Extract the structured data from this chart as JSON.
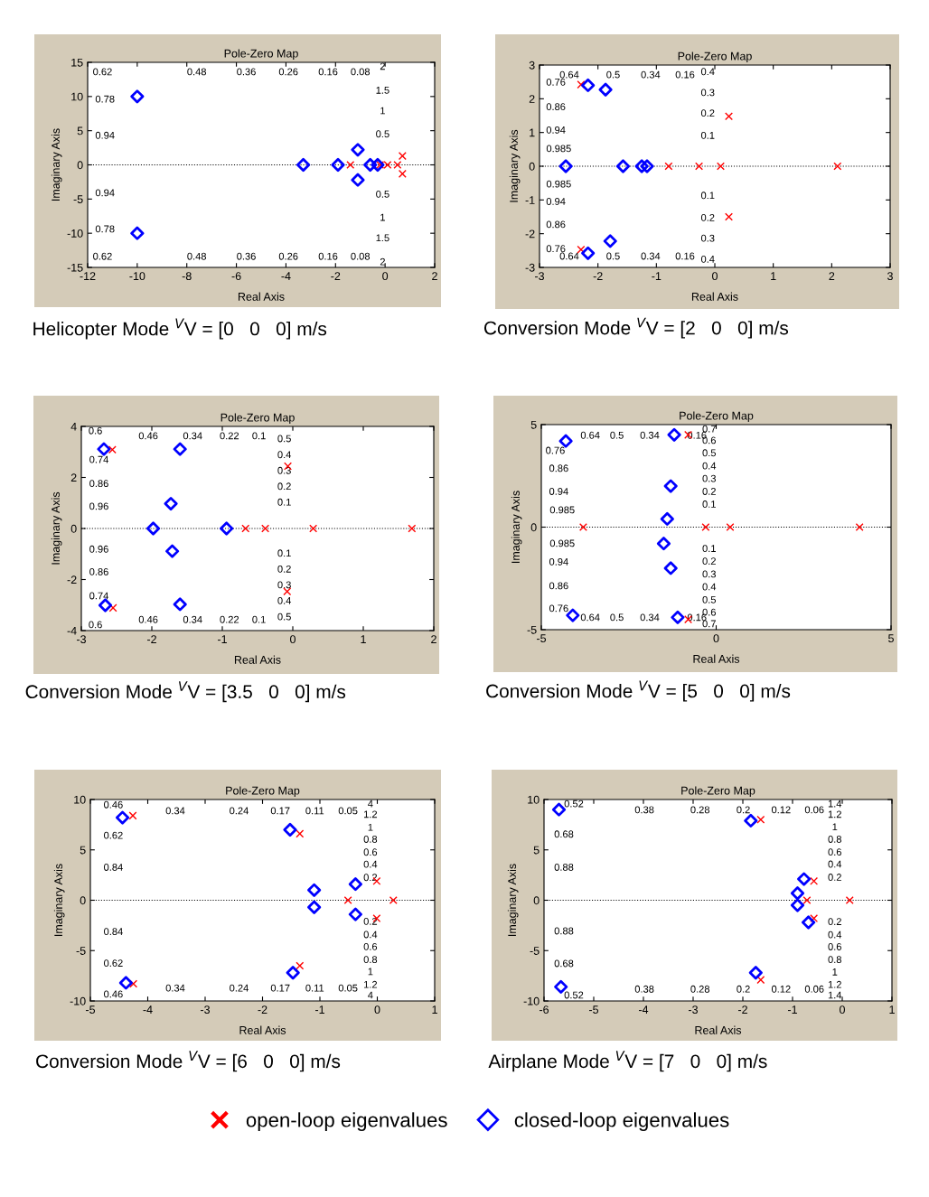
{
  "chart_data": [
    {
      "type": "scatter",
      "title": "Pole-Zero Map",
      "xlabel": "Real Axis",
      "ylabel": "Imaginary Axis",
      "xlim": [
        -12,
        2
      ],
      "ylim": [
        -15,
        15
      ],
      "xticks": [
        -12,
        -10,
        -8,
        -6,
        -4,
        -2,
        0,
        2
      ],
      "yticks": [
        -15,
        -10,
        -5,
        0,
        5,
        10,
        15
      ],
      "ref_lines": [
        {
          "axis": "y",
          "value": 0,
          "line_style": "dotted",
          "color": "#000000"
        }
      ],
      "series": [
        {
          "color": "#ff0000",
          "marker": "cross",
          "x": [
            -1.4,
            -0.2,
            0.1,
            0.5,
            0.7,
            0.7
          ],
          "values": [
            0,
            0,
            0,
            0,
            1.3,
            -1.3
          ]
        },
        {
          "color": "#0000ff",
          "marker": "diamond",
          "x": [
            -10,
            -10,
            -3.3,
            -1.9,
            -1.1,
            -1.1,
            -0.6,
            -0.3
          ],
          "values": [
            10,
            -10,
            0,
            0,
            2.2,
            -2.2,
            0,
            0
          ]
        }
      ],
      "annotations": [
        "0.62",
        "0.78",
        "0.94",
        "0.94",
        "0.78",
        "0.62",
        "0.48",
        "0.36",
        "0.26",
        "0.16",
        "0.08",
        "0.48",
        "0.36",
        "0.26",
        "0.16",
        "0.08",
        "2",
        "1.5",
        "1",
        "0.5",
        "0.5",
        "1",
        "1.5",
        "2",
        "Helicopter Mode $^{V}$V = [0   0   0] m/s"
      ]
    },
    {
      "type": "scatter",
      "title": "Pole-Zero Map",
      "xlabel": "Real Axis",
      "ylabel": "Imaginary Axis",
      "xlim": [
        -3,
        3
      ],
      "ylim": [
        -3,
        3
      ],
      "xticks": [
        -3,
        -2,
        -1,
        0,
        1,
        2,
        3
      ],
      "yticks": [
        -3,
        -2,
        -1,
        0,
        1,
        2,
        3
      ],
      "ref_lines": [
        {
          "axis": "y",
          "value": 0,
          "line_style": "dotted",
          "color": "#000000"
        }
      ],
      "series": [
        {
          "color": "#ff0000",
          "marker": "cross",
          "x": [
            -2.29,
            -2.29,
            -0.79,
            -0.27,
            0.1,
            0.24,
            0.24,
            2.1
          ],
          "values": [
            2.42,
            -2.47,
            0,
            0,
            0,
            1.48,
            -1.5,
            0
          ]
        },
        {
          "color": "#0000ff",
          "marker": "diamond",
          "x": [
            -2.17,
            -1.87,
            -2.55,
            -1.57,
            -1.25,
            -1.16,
            -1.79,
            -2.17
          ],
          "values": [
            2.4,
            2.27,
            0,
            0,
            0,
            0,
            -2.22,
            -2.58
          ]
        }
      ],
      "annotations": [
        "0.64",
        "0.76",
        "0.86",
        "0.94",
        "0.985",
        "0.985",
        "0.94",
        "0.86",
        "0.76",
        "0.64",
        "0.5",
        "0.34",
        "0.16",
        "0.5",
        "0.34",
        "0.16",
        "0.4",
        "0.3",
        "0.2",
        "0.1",
        "0.1",
        "0.2",
        "0.3",
        "0.4",
        "Conversion Mode $^{V}$V = [2   0   0] m/s"
      ]
    },
    {
      "type": "scatter",
      "title": "Pole-Zero Map",
      "xlabel": "Real Axis",
      "ylabel": "Imaginary Axis",
      "xlim": [
        -3,
        2
      ],
      "ylim": [
        -4,
        4
      ],
      "xticks": [
        -3,
        -2,
        -1,
        0,
        1,
        2
      ],
      "yticks": [
        -4,
        -2,
        0,
        2,
        4
      ],
      "ref_lines": [
        {
          "axis": "y",
          "value": 0,
          "line_style": "dotted",
          "color": "#000000"
        }
      ],
      "series": [
        {
          "color": "#ff0000",
          "marker": "cross",
          "x": [
            -2.56,
            -2.55,
            -0.67,
            -0.39,
            -0.07,
            -0.08,
            0.29,
            1.69
          ],
          "values": [
            3.09,
            -3.11,
            0,
            0,
            2.44,
            -2.47,
            0,
            0
          ]
        },
        {
          "color": "#0000ff",
          "marker": "diamond",
          "x": [
            -2.68,
            -1.6,
            -1.73,
            -1.98,
            -0.94,
            -1.71,
            -1.6,
            -2.66
          ],
          "values": [
            3.11,
            3.11,
            0.97,
            0,
            0,
            -0.89,
            -2.97,
            -3.01
          ]
        }
      ],
      "annotations": [
        "0.6",
        "0.74",
        "0.86",
        "0.96",
        "0.96",
        "0.86",
        "0.74",
        "0.6",
        "0.46",
        "0.34",
        "0.22",
        "0.1",
        "0.46",
        "0.34",
        "0.22",
        "0.1",
        "0.5",
        "0.4",
        "0.3",
        "0.2",
        "0.1",
        "0.1",
        "0.2",
        "0.3",
        "0.4",
        "0.5",
        "Conversion Mode $^{V}$V = [3.5   0   0] m/s"
      ]
    },
    {
      "type": "scatter",
      "title": "Pole-Zero Map",
      "xlabel": "Real Axis",
      "ylabel": "Imaginary Axis",
      "xlim": [
        -5,
        5
      ],
      "ylim": [
        -5,
        5
      ],
      "xticks": [
        -5,
        0,
        5
      ],
      "yticks": [
        -5,
        0,
        5
      ],
      "ref_lines": [
        {
          "axis": "y",
          "value": 0,
          "line_style": "dotted",
          "color": "#000000"
        }
      ],
      "series": [
        {
          "color": "#ff0000",
          "marker": "cross",
          "x": [
            -0.8,
            -0.8,
            -3.8,
            -0.3,
            0.4,
            4.1
          ],
          "values": [
            4.5,
            -4.5,
            0,
            0,
            0,
            0
          ]
        },
        {
          "color": "#0000ff",
          "marker": "diamond",
          "x": [
            -4.3,
            -1.2,
            -1.3,
            -1.4,
            -1.5,
            -1.3,
            -1.1,
            -4.1
          ],
          "values": [
            4.2,
            4.5,
            2.0,
            0.4,
            -0.8,
            -2.0,
            -4.4,
            -4.3
          ]
        }
      ],
      "annotations": [
        "0.76",
        "0.86",
        "0.94",
        "0.985",
        "0.985",
        "0.94",
        "0.86",
        "0.76",
        "0.64",
        "0.5",
        "0.34",
        "0.16",
        "0.64",
        "0.5",
        "0.34",
        "0.16",
        "0.7",
        "0.6",
        "0.5",
        "0.4",
        "0.3",
        "0.2",
        "0.1",
        "0.1",
        "0.2",
        "0.3",
        "0.4",
        "0.5",
        "0.6",
        "0.7",
        "Conversion Mode $^{V}$V = [5   0   0] m/s"
      ]
    },
    {
      "type": "scatter",
      "title": "Pole-Zero Map",
      "xlabel": "Real Axis",
      "ylabel": "Imaginary Axis",
      "xlim": [
        -5,
        1
      ],
      "ylim": [
        -10,
        10
      ],
      "xticks": [
        -5,
        -4,
        -3,
        -2,
        -1,
        0,
        1
      ],
      "yticks": [
        -10,
        -5,
        0,
        5,
        10
      ],
      "ref_lines": [
        {
          "axis": "y",
          "value": 0,
          "line_style": "dotted",
          "color": "#000000"
        }
      ],
      "series": [
        {
          "color": "#ff0000",
          "marker": "cross",
          "x": [
            -4.26,
            -1.35,
            -1.35,
            -4.25,
            -0.51,
            -0.01,
            -0.01,
            0.28
          ],
          "values": [
            8.4,
            6.6,
            -6.5,
            -8.3,
            0,
            1.9,
            -1.8,
            0
          ]
        },
        {
          "color": "#0000ff",
          "marker": "diamond",
          "x": [
            -4.44,
            -1.52,
            -1.1,
            -1.1,
            -0.38,
            -0.38,
            -1.47,
            -4.38
          ],
          "values": [
            8.2,
            7.0,
            1.0,
            -0.7,
            1.6,
            -1.4,
            -7.2,
            -8.2
          ]
        }
      ],
      "annotations": [
        "0.46",
        "0.62",
        "0.84",
        "0.84",
        "0.62",
        "0.46",
        "0.34",
        "0.24",
        "0.17",
        "0.11",
        "0.05",
        "0.34",
        "0.24",
        "0.17",
        "0.11",
        "0.05",
        "4",
        "1.2",
        "1",
        "0.8",
        "0.6",
        "0.4",
        "0.2",
        "0.2",
        "0.4",
        "0.6",
        "0.8",
        "1",
        "1.2",
        "4",
        "Conversion Mode $^{V}$V = [6   0   0] m/s"
      ]
    },
    {
      "type": "scatter",
      "title": "Pole-Zero Map",
      "xlabel": "Real Axis",
      "ylabel": "Imaginary Axis",
      "xlim": [
        -6,
        1
      ],
      "ylim": [
        -10,
        10
      ],
      "xticks": [
        -6,
        -5,
        -4,
        -3,
        -2,
        -1,
        0,
        1
      ],
      "yticks": [
        -10,
        -5,
        0,
        5,
        10
      ],
      "ref_lines": [
        {
          "axis": "y",
          "value": 0,
          "line_style": "dotted",
          "color": "#000000"
        }
      ],
      "legend": "bottom",
      "series": [
        {
          "name": "open-loop eigenvalues",
          "color": "#ff0000",
          "marker": "cross",
          "x": [
            -1.64,
            -1.64,
            -0.57,
            -0.57,
            -0.71,
            0.15
          ],
          "values": [
            8.0,
            -7.9,
            1.9,
            -1.8,
            0,
            0
          ]
        },
        {
          "name": "closed-loop eigenvalues",
          "color": "#0000ff",
          "marker": "diamond",
          "x": [
            -5.7,
            -1.84,
            -0.77,
            -0.9,
            -0.9,
            -0.68,
            -1.74,
            -5.66
          ],
          "values": [
            9.0,
            7.9,
            2.1,
            0.7,
            -0.5,
            -2.2,
            -7.2,
            -8.6
          ]
        }
      ],
      "annotations": [
        "0.52",
        "0.68",
        "0.88",
        "0.88",
        "0.68",
        "0.52",
        "0.38",
        "0.28",
        "0.2",
        "0.12",
        "0.06",
        "0.38",
        "0.28",
        "0.2",
        "0.12",
        "0.06",
        "1.4",
        "1.2",
        "1",
        "0.8",
        "0.6",
        "0.4",
        "0.2",
        "0.2",
        "0.4",
        "0.6",
        "0.8",
        "1",
        "1.2",
        "1.4",
        "Airplane Mode $^{V}$V = [7   0   0] m/s"
      ]
    }
  ]
}
